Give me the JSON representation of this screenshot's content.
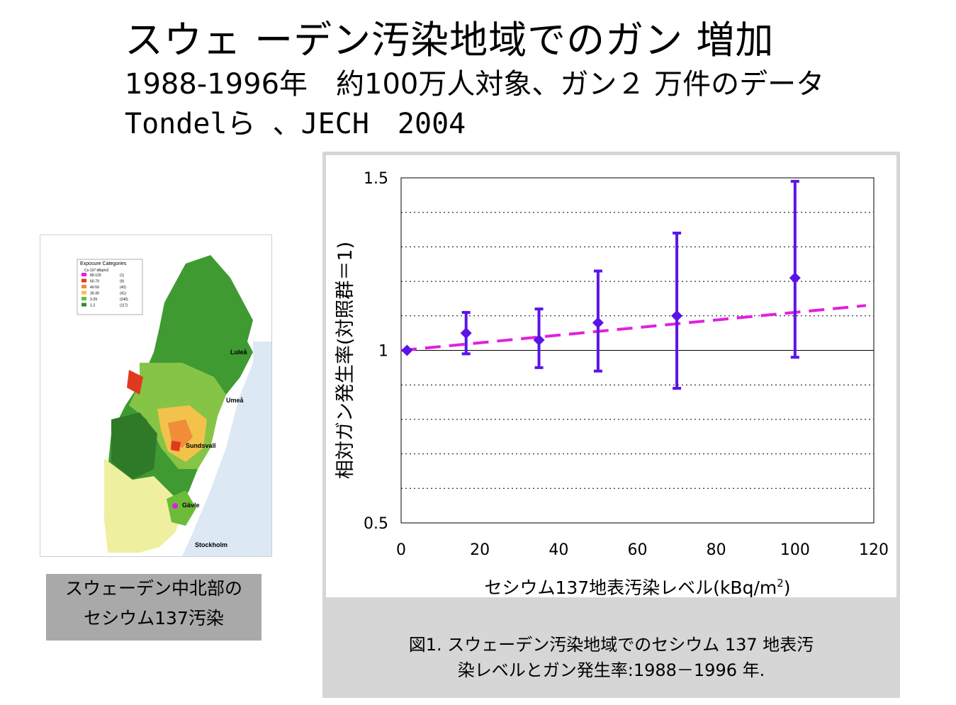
{
  "header": {
    "title": "スウェ ーデン汚染地域でのガン 増加",
    "subtitle_1": "1988-1996年　約100万人対象、ガン２ 万件のデータ",
    "subtitle_2": "Tondelら 、JECH　2004"
  },
  "map": {
    "legend_title": "Exposure Categories",
    "legend_unit": "Cs-137  kBq/m2",
    "legend_items": [
      {
        "range": "80-120",
        "count": "(1)",
        "color": "#e020e0"
      },
      {
        "range": "60-79",
        "count": "(9)",
        "color": "#e03a1e"
      },
      {
        "range": "40-59",
        "count": "(42)",
        "color": "#f08c3a"
      },
      {
        "range": "30-39",
        "count": "(41)",
        "color": "#f2c24a"
      },
      {
        "range": "3-29",
        "count": "(240)",
        "color": "#6cbc3a"
      },
      {
        "range": "1-2",
        "count": "(117)",
        "color": "#2e8c2a"
      }
    ],
    "cities": [
      "Luleå",
      "Umeå",
      "Sundsvall",
      "Gävle",
      "Stockholm"
    ],
    "caption_line1": "スウェーデン中北部の",
    "caption_line2": "セシウム137汚染"
  },
  "chart_data": {
    "type": "scatter",
    "xlabel": "セシウム137地表汚染レベル(kBq/m",
    "xlabel_sup": "2",
    "xlabel_end": ")",
    "ylabel": "相対ガン発生率(対照群＝1)",
    "xlim": [
      0,
      120
    ],
    "ylim": [
      0.5,
      1.5
    ],
    "x_ticks": [
      0,
      20,
      40,
      60,
      80,
      100,
      120
    ],
    "y_ticks": [
      {
        "value": 0.5,
        "label": "0.5"
      },
      {
        "value": 1.0,
        "label": "1"
      },
      {
        "value": 1.5,
        "label": "1.5"
      }
    ],
    "grid": "dotted horizontal every 0.1",
    "points": [
      {
        "x": 1.5,
        "y": 1.0,
        "low": 1.0,
        "high": 1.0
      },
      {
        "x": 16.5,
        "y": 1.05,
        "low": 0.99,
        "high": 1.11
      },
      {
        "x": 35,
        "y": 1.03,
        "low": 0.95,
        "high": 1.12
      },
      {
        "x": 50,
        "y": 1.08,
        "low": 0.94,
        "high": 1.23
      },
      {
        "x": 70,
        "y": 1.1,
        "low": 0.89,
        "high": 1.34
      },
      {
        "x": 100,
        "y": 1.21,
        "low": 0.98,
        "high": 1.49
      }
    ],
    "trend": {
      "x": [
        0,
        118
      ],
      "y": [
        1.0,
        1.13
      ]
    },
    "point_color": "#5a14e6",
    "trend_color": "#e020e0"
  },
  "figure_caption": {
    "line1": "図1. スウェーデン汚染地域でのセシウム 137 地表汚",
    "line2": "染レベルとガン発生率:1988－1996 年."
  }
}
